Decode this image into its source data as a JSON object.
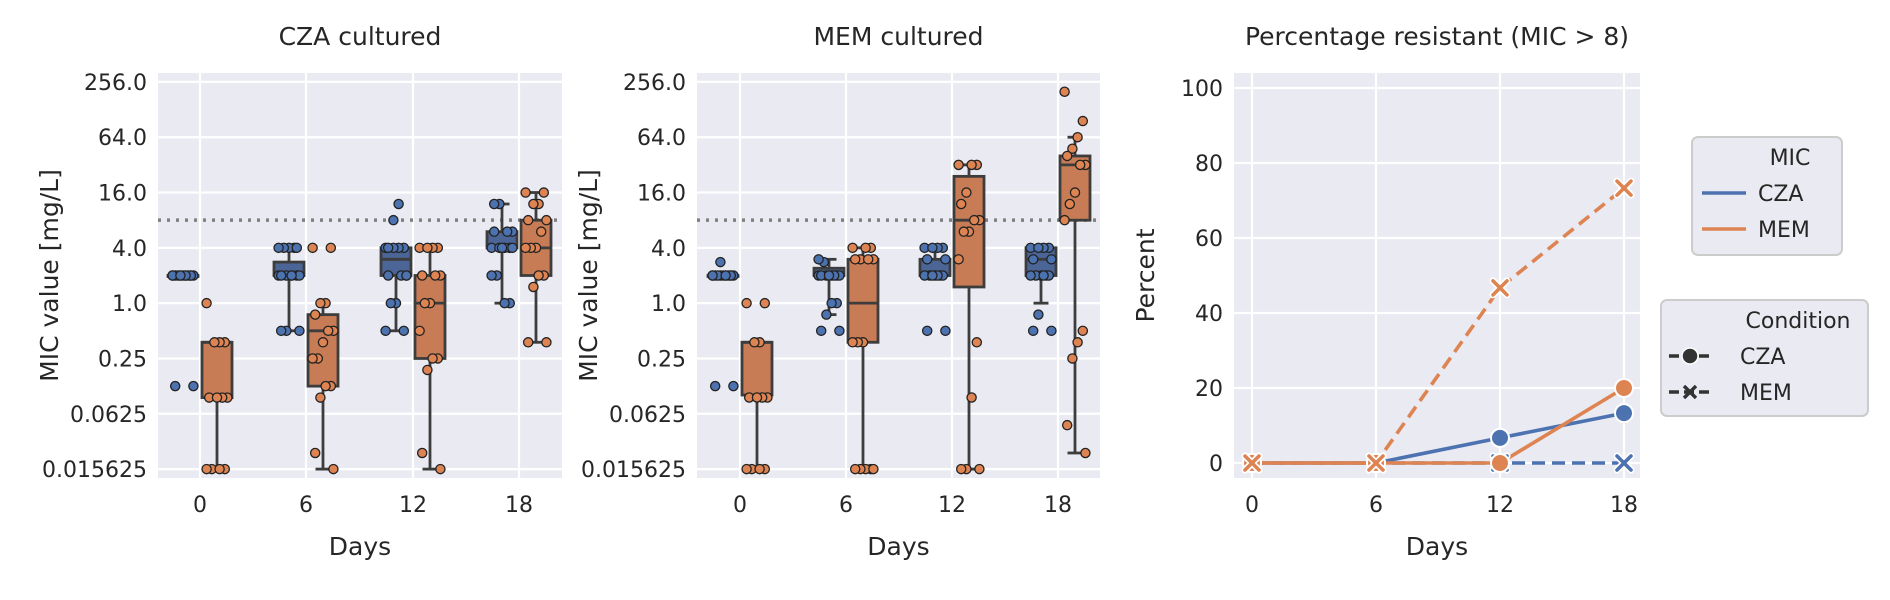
{
  "chart_data": [
    {
      "type": "box",
      "title": "CZA cultured",
      "xlabel": "Days",
      "ylabel": "MIC value [mg/L]",
      "y_scale": "log2",
      "ylim": [
        0.0125,
        320
      ],
      "y_ticks": [
        "0.015625",
        "0.0625",
        "0.25",
        "1.0",
        "4.0",
        "16.0",
        "64.0",
        "256.0"
      ],
      "y_tick_values": [
        0.015625,
        0.0625,
        0.25,
        1,
        4,
        16,
        64,
        256
      ],
      "categories": [
        "0",
        "6",
        "12",
        "18"
      ],
      "threshold": 8,
      "series": [
        {
          "name": "CZA",
          "boxes": [
            {
              "whislo": 2,
              "q1": 2,
              "med": 2,
              "q3": 2,
              "whishi": 2
            },
            {
              "whislo": 0.5,
              "q1": 2,
              "med": 2,
              "q3": 2.8,
              "whishi": 4
            },
            {
              "whislo": 0.5,
              "q1": 2,
              "med": 3,
              "q3": 4,
              "whishi": 4
            },
            {
              "whislo": 1,
              "q1": 4,
              "med": 4,
              "q3": 6,
              "whishi": 12
            }
          ],
          "points": [
            [
              2,
              2,
              2,
              2,
              2,
              2,
              2,
              2,
              2,
              2,
              2,
              2,
              2,
              0.125,
              0.125
            ],
            [
              2,
              2,
              2,
              2,
              2,
              2,
              4,
              4,
              4,
              4,
              4,
              2,
              0.5,
              0.5,
              0.5
            ],
            [
              4,
              4,
              4,
              4,
              2,
              2,
              2,
              1,
              1,
              0.5,
              0.5,
              12,
              8,
              4,
              2
            ],
            [
              4,
              4,
              4,
              4,
              6,
              6,
              6,
              4,
              2,
              2,
              1,
              1,
              12,
              12,
              4
            ]
          ]
        },
        {
          "name": "MEM",
          "boxes": [
            {
              "whislo": 0.015625,
              "q1": 0.0938,
              "med": 0.375,
              "q3": 0.375,
              "whishi": 0.375
            },
            {
              "whislo": 0.015625,
              "q1": 0.125,
              "med": 0.5,
              "q3": 0.75,
              "whishi": 1
            },
            {
              "whislo": 0.015625,
              "q1": 0.25,
              "med": 1,
              "q3": 2,
              "whishi": 4
            },
            {
              "whislo": 0.375,
              "q1": 2,
              "med": 4,
              "q3": 8,
              "whishi": 16
            }
          ],
          "points": [
            [
              1,
              0.375,
              0.375,
              0.375,
              0.0938,
              0.0938,
              0.0938,
              0.0938,
              0.015625,
              0.015625,
              0.015625,
              0.015625
            ],
            [
              4,
              4,
              1,
              1,
              0.75,
              0.5,
              0.5,
              0.375,
              0.25,
              0.25,
              0.125,
              0.125,
              0.0938,
              0.0234,
              0.015625
            ],
            [
              4,
              4,
              4,
              4,
              2,
              2,
              2,
              1,
              1,
              0.5,
              0.25,
              0.25,
              0.1875,
              0.0234,
              0.015625
            ],
            [
              16,
              16,
              12,
              12,
              8,
              8,
              6,
              4,
              4,
              4,
              2,
              2,
              1.5,
              0.375,
              0.375
            ]
          ]
        }
      ]
    },
    {
      "type": "box",
      "title": "MEM cultured",
      "xlabel": "Days",
      "ylabel": "MIC value [mg/L]",
      "y_scale": "log2",
      "ylim": [
        0.0125,
        320
      ],
      "y_ticks": [
        "0.015625",
        "0.0625",
        "0.25",
        "1.0",
        "4.0",
        "16.0",
        "64.0",
        "256.0"
      ],
      "y_tick_values": [
        0.015625,
        0.0625,
        0.25,
        1,
        4,
        16,
        64,
        256
      ],
      "categories": [
        "0",
        "6",
        "12",
        "18"
      ],
      "threshold": 8,
      "series": [
        {
          "name": "CZA",
          "boxes": [
            {
              "whislo": 2,
              "q1": 2,
              "med": 2,
              "q3": 2,
              "whishi": 2
            },
            {
              "whislo": 0.75,
              "q1": 2,
              "med": 2,
              "q3": 2.4,
              "whishi": 3
            },
            {
              "whislo": 2,
              "q1": 2,
              "med": 2,
              "q3": 3,
              "whishi": 4
            },
            {
              "whislo": 1,
              "q1": 2,
              "med": 3,
              "q3": 4,
              "whishi": 4
            }
          ],
          "points": [
            [
              2,
              2,
              2,
              2,
              2,
              2,
              2,
              2,
              2,
              2,
              2,
              2,
              2.8,
              0.125,
              0.125
            ],
            [
              2,
              2,
              2,
              2,
              2,
              2,
              2,
              2,
              2.8,
              3,
              1,
              1,
              0.75,
              0.5,
              0.5
            ],
            [
              4,
              4,
              4,
              4,
              3,
              3,
              2,
              2,
              2,
              2,
              2,
              2,
              2,
              0.5,
              0.5
            ],
            [
              4,
              4,
              4,
              4,
              3,
              3,
              2,
              2,
              2,
              2,
              2,
              2,
              0.75,
              0.5,
              0.5
            ]
          ]
        },
        {
          "name": "MEM",
          "boxes": [
            {
              "whislo": 0.015625,
              "q1": 0.1,
              "med": 0.375,
              "q3": 0.375,
              "whishi": 0.375
            },
            {
              "whislo": 0.015625,
              "q1": 0.375,
              "med": 1,
              "q3": 3,
              "whishi": 4
            },
            {
              "whislo": 0.015625,
              "q1": 1.5,
              "med": 8,
              "q3": 24,
              "whishi": 32
            },
            {
              "whislo": 0.0234,
              "q1": 8,
              "med": 32,
              "q3": 40,
              "whishi": 64
            }
          ],
          "points": [
            [
              1,
              1,
              0.375,
              0.375,
              0.094,
              0.094,
              0.094,
              0.094,
              0.015625,
              0.015625,
              0.015625,
              0.015625
            ],
            [
              4,
              4,
              4,
              3,
              3,
              3,
              3,
              0.375,
              0.375,
              0.375,
              0.015625,
              0.015625,
              0.015625,
              0.015625,
              0.015625
            ],
            [
              32,
              32,
              32,
              16,
              12,
              8,
              8,
              6,
              6,
              3,
              0.375,
              0.094,
              0.015625,
              0.015625,
              0.015625
            ],
            [
              200,
              96,
              64,
              48,
              40,
              32,
              32,
              16,
              12,
              8,
              0.5,
              0.375,
              0.25,
              0.047,
              0.0234
            ]
          ]
        }
      ]
    },
    {
      "type": "line",
      "title": "Percentage resistant (MIC > 8)",
      "xlabel": "Days",
      "ylabel": "Percent",
      "x": [
        0,
        6,
        12,
        18
      ],
      "x_ticks": [
        "0",
        "6",
        "12",
        "18"
      ],
      "ylim": [
        -4,
        104
      ],
      "y_ticks": [
        "0",
        "20",
        "40",
        "60",
        "80",
        "100"
      ],
      "y_tick_values": [
        0,
        20,
        40,
        60,
        80,
        100
      ],
      "series": [
        {
          "name": "CZA",
          "mic": "CZA",
          "condition": "CZA",
          "values": [
            0,
            0,
            6.7,
            13.3
          ],
          "color": "#4c72b0",
          "dash": "solid",
          "marker": "circle"
        },
        {
          "name": "CZA",
          "mic": "CZA",
          "condition": "MEM",
          "values": [
            0,
            0,
            0,
            0
          ],
          "color": "#4c72b0",
          "dash": "dashed",
          "marker": "x"
        },
        {
          "name": "MEM",
          "mic": "MEM",
          "condition": "CZA",
          "values": [
            0,
            0,
            0,
            20
          ],
          "color": "#dd8452",
          "dash": "solid",
          "marker": "circle"
        },
        {
          "name": "MEM",
          "mic": "MEM",
          "condition": "MEM",
          "values": [
            0,
            0,
            46.7,
            73.3
          ],
          "color": "#dd8452",
          "dash": "dashed",
          "marker": "x"
        }
      ],
      "legends": [
        {
          "title": "MIC",
          "entries": [
            {
              "label": "CZA",
              "color": "#4c72b0"
            },
            {
              "label": "MEM",
              "color": "#dd8452"
            }
          ]
        },
        {
          "title": "Condition",
          "entries": [
            {
              "label": "CZA",
              "marker": "circle"
            },
            {
              "label": "MEM",
              "marker": "x"
            }
          ]
        }
      ],
      "legend_position": "right"
    }
  ],
  "colors": {
    "CZA": "#4c72b0",
    "MEM": "#dd8452",
    "CZA_box": "#4b6597",
    "MEM_box": "#c87c55",
    "background": "#eaeaf2"
  }
}
